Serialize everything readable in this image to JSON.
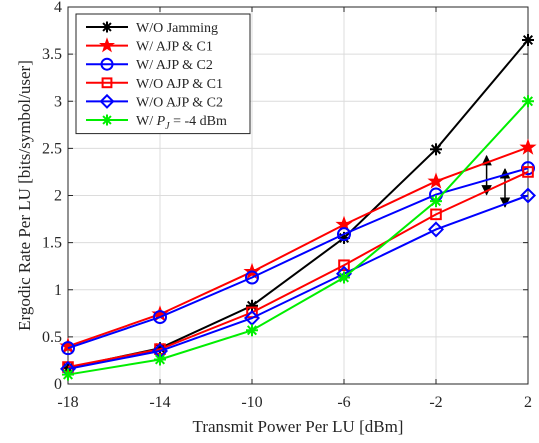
{
  "chart_data": {
    "type": "line",
    "xlabel": "Transmit Power Per LU [dBm]",
    "ylabel": "Ergodic Rate Per LU [bits/symbol/user]",
    "x": [
      -18,
      -14,
      -10,
      -6,
      -2,
      2
    ],
    "x_ticks": [
      "-18",
      "-14",
      "-10",
      "-6",
      "-2",
      "2"
    ],
    "y_ticks": [
      "0",
      "0.5",
      "1",
      "1.5",
      "2",
      "2.5",
      "3",
      "3.5",
      "4"
    ],
    "xlim": [
      -18,
      2
    ],
    "ylim": [
      0,
      4
    ],
    "grid": true,
    "legend_position": "top-left",
    "series": [
      {
        "name": "W/O Jamming",
        "marker": "asterisk",
        "color": "#000000",
        "values": [
          0.17,
          0.38,
          0.83,
          1.55,
          2.49,
          3.65
        ]
      },
      {
        "name": "W/ AJP & C1",
        "marker": "star",
        "color": "#ff0000",
        "values": [
          0.4,
          0.74,
          1.19,
          1.69,
          2.15,
          2.51
        ]
      },
      {
        "name": "W/ AJP & C2",
        "marker": "circle",
        "color": "#0000ff",
        "values": [
          0.38,
          0.71,
          1.13,
          1.59,
          2.01,
          2.29
        ]
      },
      {
        "name": "W/O AJP & C1",
        "marker": "square",
        "color": "#ff0000",
        "values": [
          0.18,
          0.37,
          0.76,
          1.26,
          1.8,
          2.25
        ]
      },
      {
        "name": "W/O AJP & C2",
        "marker": "diamond",
        "color": "#0000ff",
        "values": [
          0.16,
          0.35,
          0.7,
          1.17,
          1.64,
          2.0
        ]
      },
      {
        "name_prefix": "W/ ",
        "name_italic": "P",
        "name_sub": "J",
        "name_suffix": " = -4 dBm",
        "marker": "asterisk",
        "color": "#00ee00",
        "values": [
          0.1,
          0.26,
          0.57,
          1.13,
          1.94,
          3.0
        ]
      }
    ],
    "annotations": [
      {
        "type": "double-arrow",
        "x": 0.2,
        "y_from": 2.01,
        "y_to": 2.42
      },
      {
        "type": "double-arrow",
        "x": 1.0,
        "y_from": 1.88,
        "y_to": 2.28
      }
    ]
  }
}
